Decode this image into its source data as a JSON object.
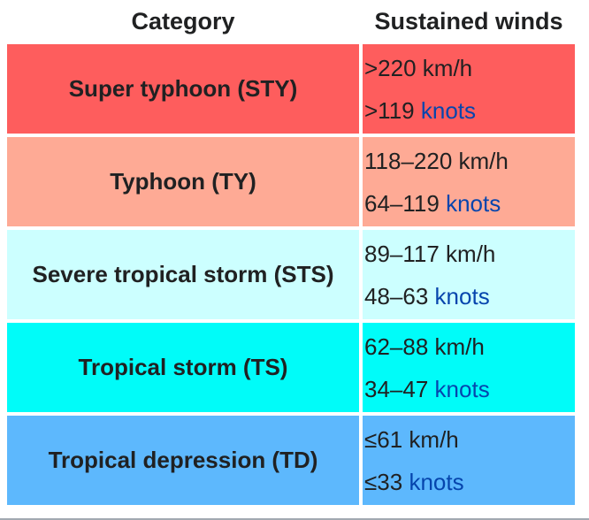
{
  "table": {
    "headers": {
      "category": "Category",
      "winds": "Sustained winds"
    },
    "rows": [
      {
        "category": "Super typhoon (STY)",
        "kmh": ">220 km/h",
        "knots_value": ">119",
        "knots_label": "knots",
        "color": "#fe5d5d"
      },
      {
        "category": "Typhoon (TY)",
        "kmh": "118–220 km/h",
        "knots_value": "64–119",
        "knots_label": "knots",
        "color": "#feaa95"
      },
      {
        "category": "Severe tropical storm (STS)",
        "kmh": "89–117 km/h",
        "knots_value": "48–63",
        "knots_label": "knots",
        "color": "#ccffff"
      },
      {
        "category": "Tropical storm (TS)",
        "kmh": "62–88 km/h",
        "knots_value": "34–47",
        "knots_label": "knots",
        "color": "#00fcf9"
      },
      {
        "category": "Tropical depression (TD)",
        "kmh": "≤61 km/h",
        "knots_value": "≤33",
        "knots_label": "knots",
        "color": "#5db8fd"
      }
    ]
  }
}
